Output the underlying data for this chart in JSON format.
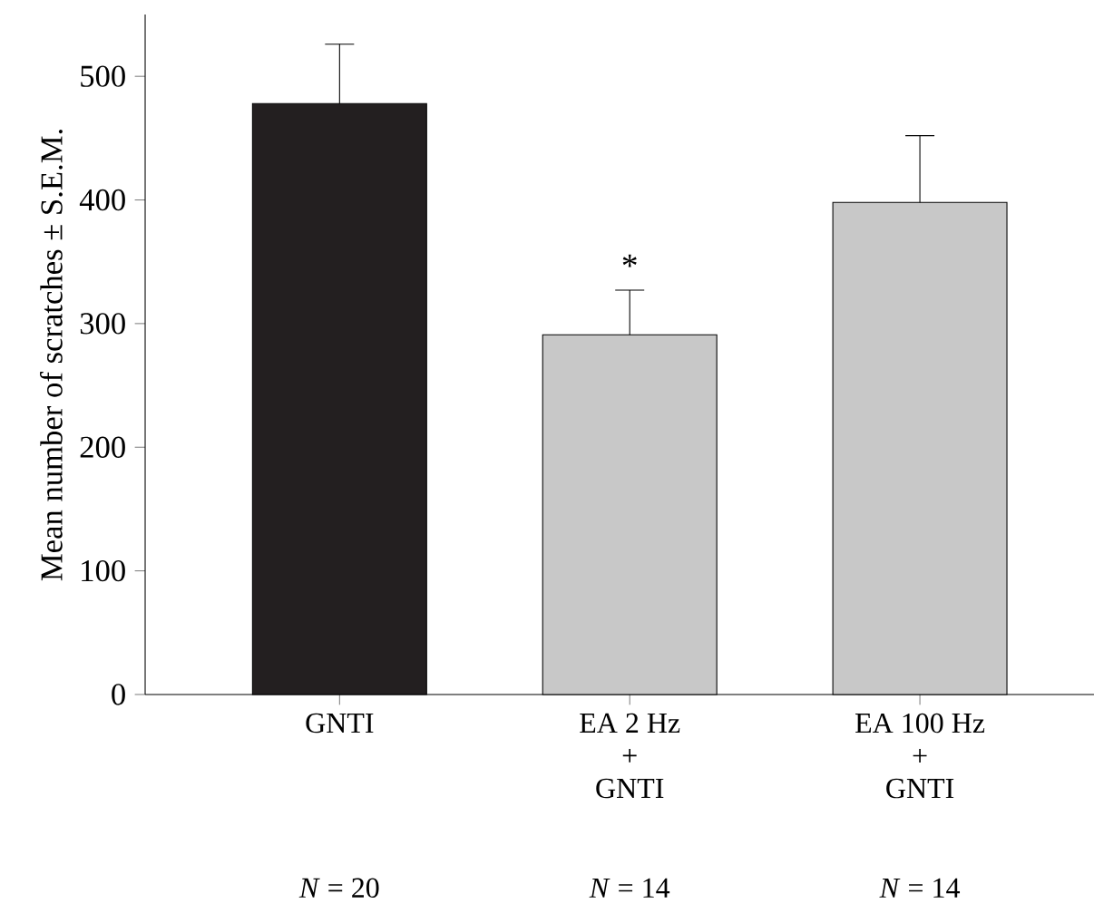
{
  "chart_data": {
    "type": "bar",
    "ylabel": "Mean number of scratches ± S.E.M.",
    "categories": [
      "GNTI",
      "EA 2 Hz\n+\nGNTI",
      "EA 100 Hz\n+\nGNTI"
    ],
    "values": [
      478,
      291,
      398
    ],
    "errors": [
      48,
      36,
      54
    ],
    "colors": [
      "#231f20",
      "#c8c8c8",
      "#c8c8c8"
    ],
    "ylim": [
      0,
      550
    ],
    "yticks": [
      0,
      100,
      200,
      300,
      400,
      500
    ],
    "annotations": [
      "*",
      "*N* = 20",
      "*N* = 14",
      "*N* = 14"
    ]
  }
}
